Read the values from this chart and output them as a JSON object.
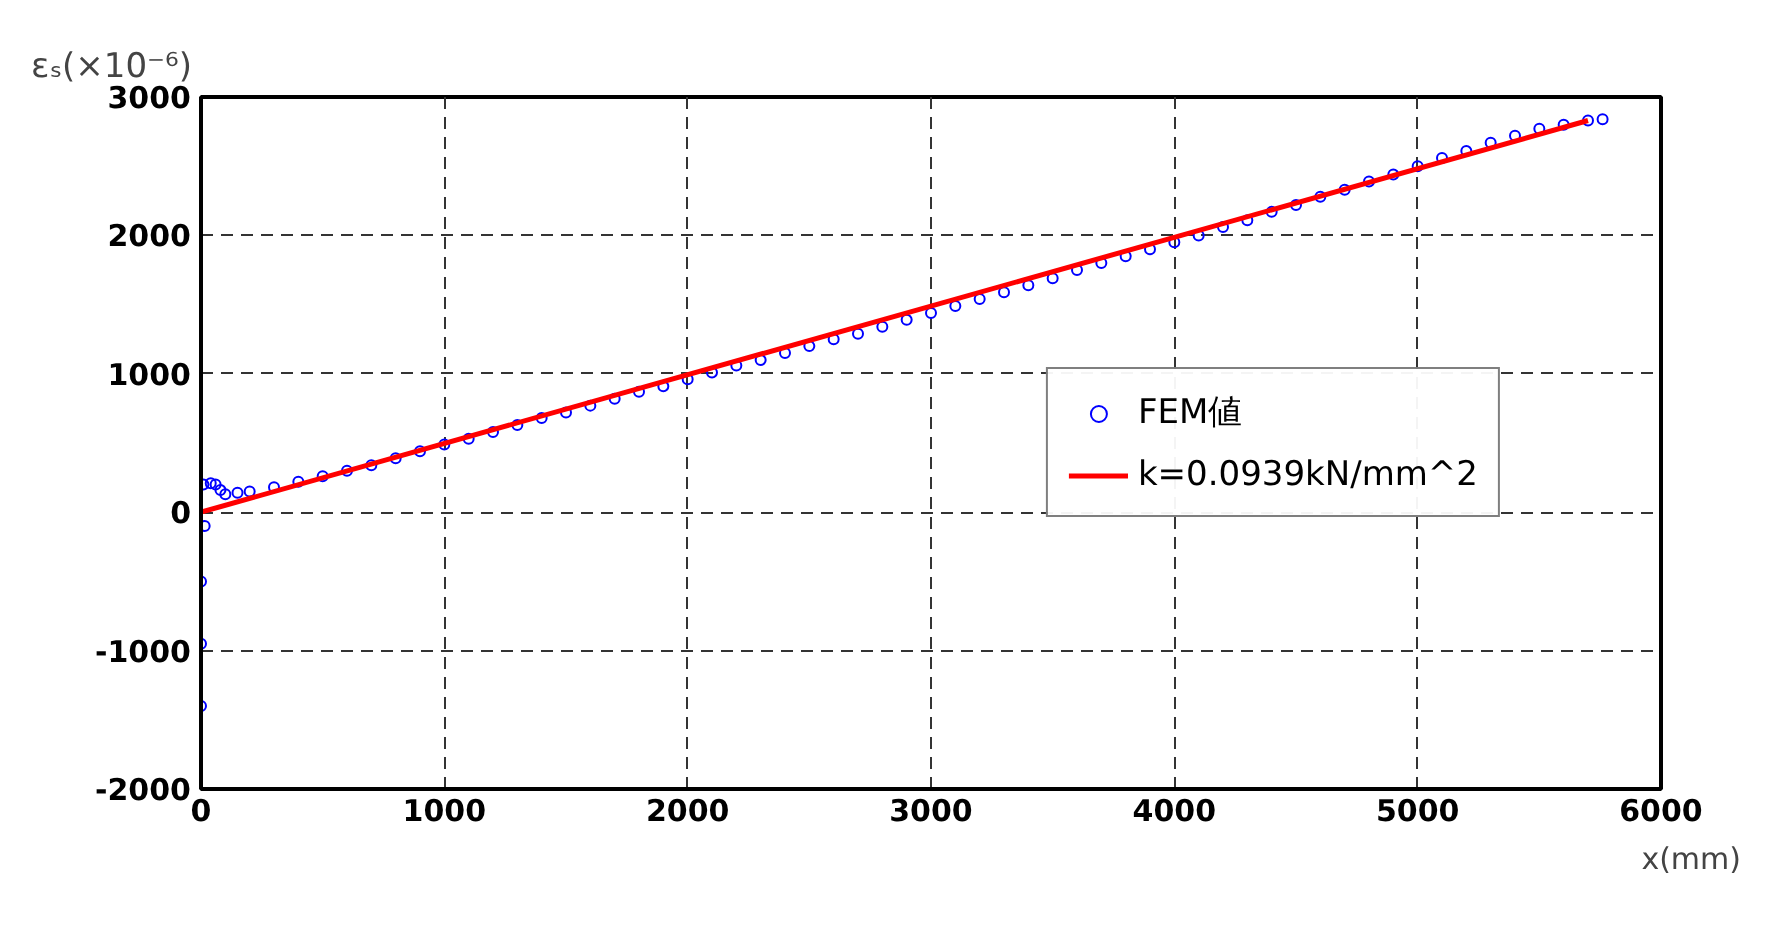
{
  "chart_data": {
    "type": "scatter",
    "ylabel": "εₛ(×10⁻⁶)",
    "xlabel": "x(mm)",
    "xlim": [
      0,
      6000
    ],
    "xticks": [
      0,
      1000,
      2000,
      3000,
      4000,
      5000,
      6000
    ],
    "ylim": [
      -2000,
      3000
    ],
    "yticks": [
      -2000,
      -1000,
      0,
      1000,
      2000,
      3000
    ],
    "grid": true,
    "legend": "center right",
    "series": [
      {
        "name": "FEM値",
        "color": "#0000ff",
        "marker": "circle",
        "x": [
          0,
          0,
          0,
          15,
          10,
          40,
          60,
          80,
          100,
          150,
          200,
          300,
          400,
          500,
          600,
          700,
          800,
          900,
          1000,
          1100,
          1200,
          1300,
          1400,
          1500,
          1600,
          1700,
          1800,
          1900,
          2000,
          2100,
          2200,
          2300,
          2400,
          2500,
          2600,
          2700,
          2800,
          2900,
          3000,
          3100,
          3200,
          3300,
          3400,
          3500,
          3600,
          3700,
          3800,
          3900,
          4000,
          4100,
          4200,
          4300,
          4400,
          4500,
          4600,
          4700,
          4800,
          4900,
          5000,
          5100,
          5200,
          5300,
          5400,
          5500,
          5600,
          5700,
          5760
        ],
        "values": [
          -1400,
          -950,
          -500,
          -100,
          200,
          210,
          200,
          160,
          130,
          140,
          150,
          180,
          220,
          260,
          300,
          340,
          390,
          440,
          490,
          530,
          580,
          630,
          680,
          720,
          770,
          820,
          870,
          910,
          960,
          1010,
          1060,
          1100,
          1150,
          1200,
          1250,
          1290,
          1340,
          1390,
          1440,
          1490,
          1540,
          1590,
          1640,
          1690,
          1750,
          1800,
          1850,
          1900,
          1950,
          2000,
          2060,
          2110,
          2170,
          2220,
          2280,
          2330,
          2390,
          2440,
          2500,
          2560,
          2610,
          2670,
          2720,
          2770,
          2800,
          2830,
          2840
        ]
      },
      {
        "name": "k=0.0939kN/mm^2",
        "color": "#ff0000",
        "type": "line",
        "line_style": "solid",
        "x": [
          0,
          5700
        ],
        "values": [
          0,
          2830
        ]
      }
    ]
  }
}
